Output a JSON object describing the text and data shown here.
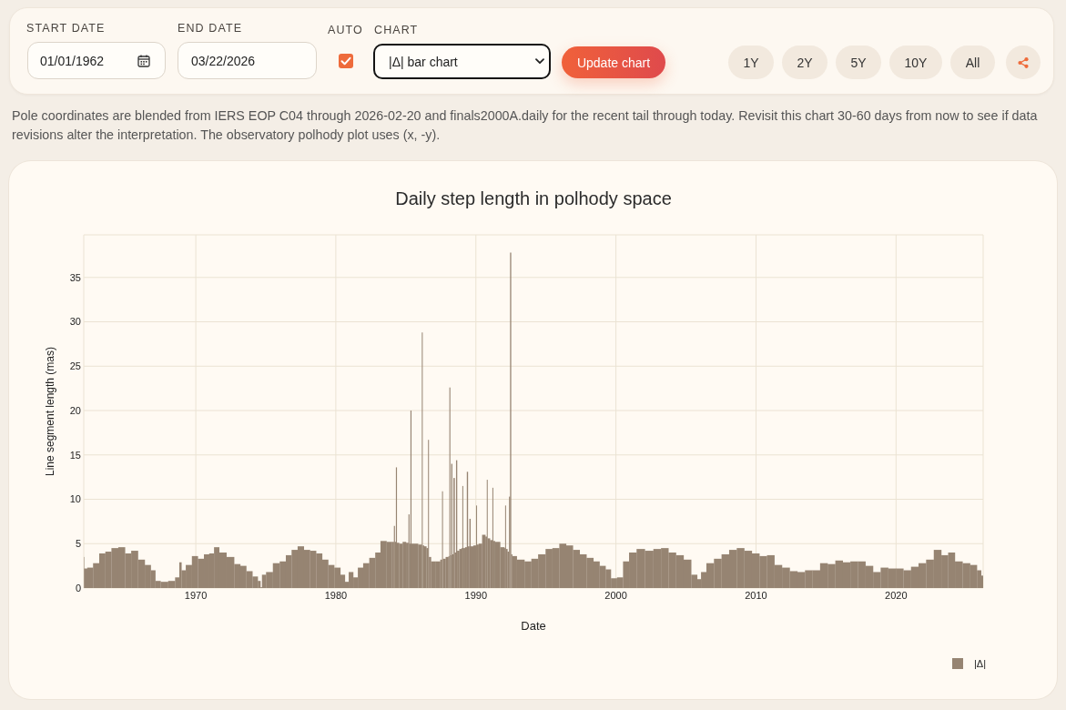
{
  "chart_data": {
    "type": "bar",
    "title": "Daily step length in polhody space",
    "xlabel": "Date",
    "ylabel": "Line segment length (mas)",
    "annotations": [
      "START DATE",
      "01/01/1962",
      "END DATE",
      "03/22/2026",
      "AUTO",
      "CHART",
      "|Δ| bar chart",
      "Update chart",
      "1Y",
      "2Y",
      "5Y",
      "10Y",
      "All",
      "Pole coordinates are blended from IERS EOP C04 through 2026-02-20 and finals2000A.daily for the recent tail through today. Revisit this chart 30-60 days from now to see if data revisions alter the interpretation. The observatory polhody plot uses (x, -y)."
    ],
    "x": [
      "1962-01-02",
      "1962-01-20",
      "1962-06-15",
      "1962-11-20",
      "1963-05-01",
      "1963-10-05",
      "1964-03-15",
      "1964-09-25",
      "1965-03-05",
      "1965-08-10",
      "1966-02-25",
      "1966-07-30",
      "1967-01-05",
      "1967-03-25",
      "1967-10-05",
      "1968-04-20",
      "1968-10-01",
      "1968-11-25",
      "1969-01-25",
      "1969-07-05",
      "1969-12-10",
      "1970-05-15",
      "1970-10-20",
      "1971-02-15",
      "1971-06-28",
      "1971-11-15",
      "1972-07-10",
      "1972-12-20",
      "1973-05-25",
      "1973-10-30",
      "1974-04-10",
      "1974-08-05",
      "1974-08-28",
      "1974-10-20",
      "1975-03-30",
      "1975-10-10",
      "1976-03-20",
      "1976-08-25",
      "1977-01-15",
      "1977-07-05",
      "1977-12-10",
      "1978-05-20",
      "1978-10-25",
      "1979-04-01",
      "1979-09-05",
      "1980-02-10",
      "1980-07-20",
      "1980-10-05",
      "1981-01-30",
      "1981-06-01",
      "1981-09-25",
      "1982-03-05",
      "1982-08-10",
      "1983-01-10",
      "1983-05-10",
      "1983-11-25",
      "1984-02-14",
      "1984-03-05",
      "1984-04-02",
      "1984-05-01",
      "1984-05-21",
      "1984-09-01",
      "1984-11-15",
      "1985-02-28",
      "1985-03-20",
      "1985-04-17",
      "1985-05-15",
      "1985-06-04",
      "1985-08-20",
      "1986-02-13",
      "1986-03-05",
      "1986-03-25",
      "1986-05-20",
      "1986-07-26",
      "1986-08-15",
      "1986-09-04",
      "1986-12-05",
      "1987-05-10",
      "1987-07-26",
      "1987-08-15",
      "1987-09-04",
      "1988-01-05",
      "1988-01-31",
      "1988-02-20",
      "1988-03-16",
      "1988-04-10",
      "1988-05-10",
      "1988-06-10",
      "1988-07-15",
      "1988-08-20",
      "1988-09-09",
      "1988-12-10",
      "1989-01-05",
      "1989-01-25",
      "1989-02-14",
      "1989-04-30",
      "1989-05-20",
      "1989-06-27",
      "1989-08-05",
      "1989-08-25",
      "1989-12-31",
      "1990-01-20",
      "1990-02-09",
      "1990-04-15",
      "1990-08-10",
      "1990-10-05",
      "1990-10-25",
      "1990-11-14",
      "1991-02-28",
      "1991-03-20",
      "1991-04-09",
      "1991-06-20",
      "1992-01-05",
      "1992-01-26",
      "1992-02-15",
      "1992-03-06",
      "1992-05-05",
      "1992-05-25",
      "1992-06-28",
      "1992-07-18",
      "1992-08-28",
      "1993-03-15",
      "1993-10-01",
      "1994-03-05",
      "1994-09-20",
      "1995-03-28",
      "1995-09-10",
      "1996-03-25",
      "1996-09-01",
      "1997-03-15",
      "1997-08-20",
      "1998-03-05",
      "1998-08-15",
      "1999-01-20",
      "1999-06-25",
      "1999-10-25",
      "2000-05-05",
      "2000-09-05",
      "2001-03-15",
      "2001-10-01",
      "2002-05-25",
      "2002-12-15",
      "2003-06-28",
      "2004-01-10",
      "2004-07-25",
      "2005-02-10",
      "2005-08-25",
      "2005-12-20",
      "2006-03-10",
      "2006-09-25",
      "2007-04-10",
      "2007-10-25",
      "2008-05-10",
      "2008-11-25",
      "2009-06-10",
      "2009-12-25",
      "2010-07-10",
      "2011-01-20",
      "2011-08-05",
      "2012-02-20",
      "2012-09-10",
      "2013-03-25",
      "2013-10-10",
      "2014-04-25",
      "2014-11-05",
      "2015-05-25",
      "2015-12-10",
      "2016-06-20",
      "2017-01-05",
      "2017-07-20",
      "2018-02-05",
      "2018-08-20",
      "2019-03-05",
      "2019-09-20",
      "2020-04-05",
      "2020-10-20",
      "2021-05-05",
      "2021-11-15",
      "2022-06-05",
      "2022-12-20",
      "2023-07-05",
      "2023-12-10",
      "2024-06-25",
      "2025-01-10",
      "2025-07-25",
      "2026-01-01",
      "2026-03-01"
    ],
    "series": [
      {
        "name": "|Δ|",
        "color": "#968472",
        "values": [
          3.5,
          2.2,
          2.3,
          2.8,
          3.9,
          4.1,
          4.5,
          4.6,
          3.9,
          4.2,
          3.2,
          2.6,
          2.0,
          0.8,
          0.7,
          0.8,
          1.2,
          2.9,
          2.0,
          2.6,
          3.6,
          3.3,
          3.8,
          3.9,
          4.6,
          4.0,
          3.5,
          2.7,
          2.5,
          1.9,
          1.3,
          0.8,
          0.1,
          1.5,
          1.8,
          2.8,
          3.0,
          3.7,
          4.3,
          4.7,
          4.3,
          4.2,
          3.9,
          3.2,
          2.6,
          2.3,
          1.5,
          0.7,
          1.8,
          1.2,
          2.3,
          2.8,
          3.4,
          4.0,
          5.3,
          5.2,
          5.2,
          7.0,
          5.2,
          13.6,
          5.1,
          5.0,
          5.2,
          5.1,
          8.3,
          5.0,
          20.0,
          5.0,
          5.0,
          4.9,
          28.8,
          4.8,
          4.7,
          4.5,
          16.7,
          3.5,
          3.0,
          3.0,
          3.2,
          10.9,
          3.3,
          3.5,
          3.6,
          22.6,
          3.7,
          14.0,
          3.8,
          12.4,
          4.0,
          14.4,
          4.2,
          4.4,
          4.5,
          11.5,
          4.5,
          4.6,
          13.1,
          4.7,
          7.8,
          4.7,
          4.8,
          9.3,
          4.9,
          5.0,
          6.0,
          5.8,
          12.2,
          5.6,
          5.4,
          11.3,
          5.3,
          5.2,
          4.6,
          4.5,
          9.3,
          4.4,
          4.1,
          10.3,
          37.8,
          3.8,
          3.6,
          3.2,
          3.0,
          3.3,
          3.8,
          4.4,
          4.5,
          5.0,
          4.8,
          4.3,
          3.8,
          3.4,
          3.0,
          2.5,
          2.1,
          1.1,
          1.2,
          3.0,
          4.0,
          4.4,
          4.2,
          4.4,
          4.5,
          4.0,
          3.7,
          3.2,
          1.5,
          1.0,
          1.8,
          2.8,
          3.3,
          3.8,
          4.3,
          4.5,
          4.2,
          3.9,
          3.6,
          3.7,
          2.6,
          2.3,
          1.9,
          1.8,
          2.0,
          2.0,
          2.8,
          2.7,
          3.1,
          2.9,
          3.0,
          3.0,
          2.5,
          1.8,
          2.3,
          2.2,
          2.2,
          2.0,
          2.4,
          2.8,
          3.2,
          4.3,
          3.7,
          4.0,
          3.0,
          2.8,
          2.6,
          2.0,
          1.4
        ]
      }
    ],
    "xlim": [
      "1962-01-01",
      "2026-03-22"
    ],
    "xticks": [
      "1970",
      "1980",
      "1990",
      "2000",
      "2010",
      "2020"
    ],
    "ylim": [
      0,
      39.8
    ],
    "yticks": [
      0,
      5,
      10,
      15,
      20,
      25,
      30,
      35
    ],
    "grid": true,
    "legend": "bottom right"
  }
}
